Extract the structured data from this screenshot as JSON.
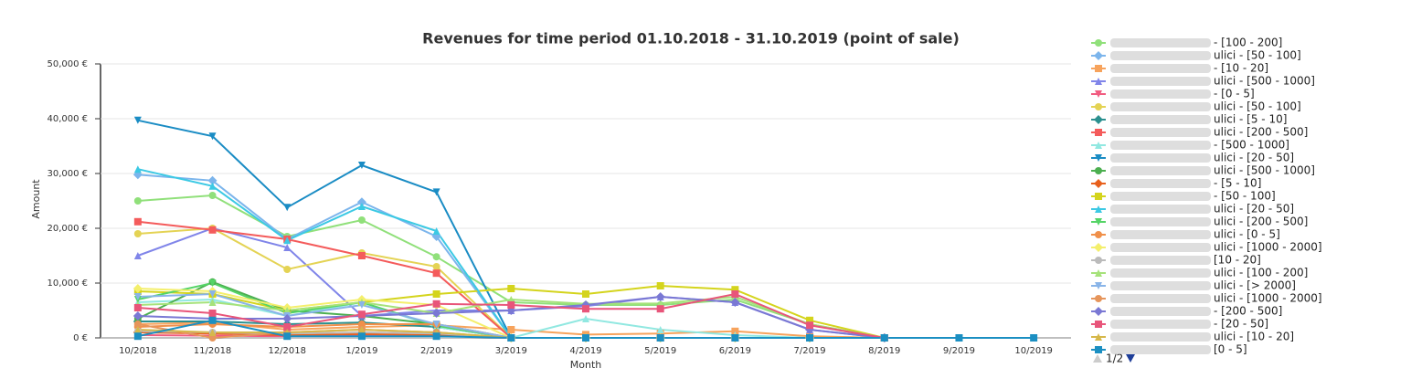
{
  "chart_data": {
    "type": "line",
    "title": "Revenues for time period 01.10.2018 - 31.10.2019 (point of sale)",
    "x_label": "Month",
    "y_label": "Amount",
    "legend_page": "1/2",
    "categories": [
      "10/2018",
      "11/2018",
      "12/2018",
      "1/2019",
      "2/2019",
      "3/2019",
      "4/2019",
      "5/2019",
      "6/2019",
      "7/2019",
      "8/2019",
      "9/2019",
      "10/2019"
    ],
    "ylim": [
      0,
      50000
    ],
    "yticks": [
      {
        "value": 0,
        "label": "0 €"
      },
      {
        "value": 10000,
        "label": "10,000 €"
      },
      {
        "value": 20000,
        "label": "20,000 €"
      },
      {
        "value": 30000,
        "label": "30,000 €"
      },
      {
        "value": 40000,
        "label": "40,000 €"
      },
      {
        "value": 50000,
        "label": "50,000 €"
      }
    ],
    "grid": true,
    "series": [
      {
        "name": "- [100 - 200]",
        "color": "#90e07a",
        "marker": "circle",
        "values": [
          25000,
          26000,
          18500,
          21500,
          14800,
          6500,
          6000,
          6000,
          7000,
          2500,
          0,
          null,
          null
        ]
      },
      {
        "name": "ulici - [50 - 100]",
        "color": "#7cb5ec",
        "marker": "diamond",
        "values": [
          29800,
          28700,
          18000,
          24800,
          18500,
          0,
          0,
          0,
          0,
          0,
          0,
          null,
          null
        ]
      },
      {
        "name": "- [10 - 20]",
        "color": "#f7a35c",
        "marker": "square",
        "values": [
          2500,
          2800,
          1500,
          2000,
          2300,
          1500,
          600,
          800,
          1200,
          300,
          0,
          null,
          null
        ]
      },
      {
        "name": "ulici - [500 - 1000]",
        "color": "#8085e9",
        "marker": "triangle",
        "values": [
          15000,
          20000,
          16500,
          4000,
          5000,
          5000,
          5800,
          7500,
          6500,
          1500,
          0,
          null,
          null
        ]
      },
      {
        "name": "- [0 - 5]",
        "color": "#f15c80",
        "marker": "triangle-down",
        "values": [
          500,
          400,
          300,
          500,
          400,
          0,
          0,
          0,
          0,
          0,
          0,
          null,
          null
        ]
      },
      {
        "name": "ulici - [50 - 100]",
        "color": "#e4d354",
        "marker": "circle",
        "values": [
          19000,
          20000,
          12500,
          15500,
          13000,
          0,
          0,
          0,
          0,
          0,
          0,
          null,
          null
        ]
      },
      {
        "name": "ulici - [5 - 10]",
        "color": "#2b908f",
        "marker": "diamond",
        "values": [
          3000,
          3000,
          2500,
          2800,
          2000,
          0,
          0,
          0,
          0,
          0,
          0,
          null,
          null
        ]
      },
      {
        "name": "ulici - [200 - 500]",
        "color": "#f45b5b",
        "marker": "square",
        "values": [
          21200,
          19700,
          18000,
          15000,
          11800,
          0,
          0,
          0,
          0,
          0,
          0,
          null,
          null
        ]
      },
      {
        "name": "- [500 - 1000]",
        "color": "#91e8e1",
        "marker": "triangle",
        "values": [
          6500,
          7000,
          4000,
          6500,
          2000,
          0,
          3500,
          1500,
          500,
          0,
          0,
          null,
          null
        ]
      },
      {
        "name": "ulici - [20 - 50]",
        "color": "#1a8cc4",
        "marker": "triangle-down",
        "values": [
          39700,
          36800,
          23800,
          31500,
          26600,
          0,
          0,
          0,
          0,
          0,
          0,
          null,
          null
        ]
      },
      {
        "name": "ulici - [500 - 1000]",
        "color": "#4caf50",
        "marker": "circle",
        "values": [
          3500,
          10200,
          5000,
          4000,
          2500,
          0,
          0,
          0,
          0,
          0,
          0,
          null,
          null
        ]
      },
      {
        "name": "- [5 - 10]",
        "color": "#e8601c",
        "marker": "diamond",
        "values": [
          1000,
          800,
          500,
          700,
          500,
          0,
          0,
          0,
          0,
          0,
          0,
          null,
          null
        ]
      },
      {
        "name": "- [50 - 100]",
        "color": "#d4d41c",
        "marker": "square",
        "values": [
          8500,
          8000,
          5000,
          6500,
          8000,
          9000,
          8000,
          9500,
          8800,
          3200,
          0,
          null,
          null
        ]
      },
      {
        "name": "ulici - [20 - 50]",
        "color": "#3cc9e4",
        "marker": "triangle",
        "values": [
          30800,
          27700,
          17800,
          24000,
          19500,
          0,
          0,
          0,
          0,
          0,
          0,
          null,
          null
        ]
      },
      {
        "name": "ulici - [200 - 500]",
        "color": "#55d466",
        "marker": "triangle-down",
        "values": [
          7000,
          10000,
          4500,
          6500,
          2200,
          0,
          0,
          0,
          0,
          0,
          0,
          null,
          null
        ]
      },
      {
        "name": "ulici - [0 - 5]",
        "color": "#f0904a",
        "marker": "circle",
        "values": [
          2000,
          2500,
          2000,
          2500,
          2500,
          0,
          0,
          0,
          0,
          0,
          0,
          null,
          null
        ]
      },
      {
        "name": "ulici - [1000 - 2000]",
        "color": "#f4ef6c",
        "marker": "diamond",
        "values": [
          9000,
          8500,
          5500,
          7000,
          6000,
          0,
          0,
          0,
          0,
          0,
          0,
          null,
          null
        ]
      },
      {
        "name": "[10 - 20]",
        "color": "#bbbbbb",
        "marker": "circle",
        "values": [
          1200,
          1000,
          800,
          1000,
          800,
          0,
          0,
          0,
          0,
          0,
          0,
          null,
          null
        ]
      },
      {
        "name": "ulici - [100 - 200]",
        "color": "#a6e27a",
        "marker": "triangle",
        "values": [
          6000,
          6500,
          5000,
          6500,
          4500,
          7000,
          6200,
          6300,
          7500,
          2500,
          0,
          null,
          null
        ]
      },
      {
        "name": "ulici - [> 2000]",
        "color": "#89b4e8",
        "marker": "triangle-down",
        "values": [
          7500,
          8000,
          4000,
          6000,
          2500,
          0,
          0,
          0,
          0,
          0,
          0,
          null,
          null
        ]
      },
      {
        "name": "ulici - [1000 - 2000]",
        "color": "#e6955b",
        "marker": "circle",
        "values": [
          2500,
          0,
          1000,
          1500,
          1000,
          0,
          0,
          0,
          0,
          0,
          0,
          null,
          null
        ]
      },
      {
        "name": "- [200 - 500]",
        "color": "#7a78d4",
        "marker": "diamond",
        "values": [
          4000,
          3500,
          3500,
          4000,
          4500,
          5000,
          6000,
          7500,
          6500,
          1500,
          0,
          null,
          null
        ]
      },
      {
        "name": "- [20 - 50]",
        "color": "#e8557a",
        "marker": "square",
        "values": [
          5500,
          4500,
          2000,
          4300,
          6200,
          6000,
          5300,
          5300,
          8000,
          2300,
          0,
          null,
          null
        ]
      },
      {
        "name": "ulici - [10 - 20]",
        "color": "#d6b84a",
        "marker": "triangle",
        "values": [
          1500,
          1000,
          1000,
          1500,
          1000,
          0,
          0,
          0,
          0,
          0,
          0,
          null,
          null
        ]
      },
      {
        "name": "[0 - 5]",
        "color": "#1b8fc2",
        "marker": "square",
        "values": [
          300,
          3200,
          300,
          300,
          300,
          0,
          0,
          0,
          0,
          0,
          0,
          0,
          0
        ]
      }
    ]
  }
}
